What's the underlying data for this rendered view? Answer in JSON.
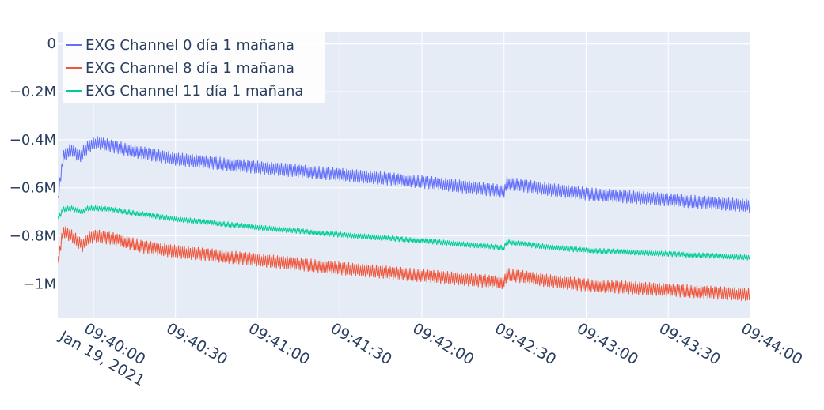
{
  "chart_data": {
    "type": "line",
    "title": "",
    "xlabel": "",
    "ylabel": "",
    "x_range": [
      "09:39:47",
      "09:44:00"
    ],
    "y_range": [
      -1140000,
      50000
    ],
    "grid": true,
    "legend_position": "top-left",
    "y_ticks": [
      {
        "value": 0,
        "label": "0"
      },
      {
        "value": -200000,
        "label": "−0.2M"
      },
      {
        "value": -400000,
        "label": "−0.4M"
      },
      {
        "value": -600000,
        "label": "−0.6M"
      },
      {
        "value": -800000,
        "label": "−0.8M"
      },
      {
        "value": -1000000,
        "label": "−1M"
      }
    ],
    "x_ticks": [
      {
        "t": "09:40:00",
        "label": "09:40:00",
        "sublabel": "Jan 19, 2021"
      },
      {
        "t": "09:40:30",
        "label": "09:40:30"
      },
      {
        "t": "09:41:00",
        "label": "09:41:00"
      },
      {
        "t": "09:41:30",
        "label": "09:41:30"
      },
      {
        "t": "09:42:00",
        "label": "09:42:00"
      },
      {
        "t": "09:42:30",
        "label": "09:42:30"
      },
      {
        "t": "09:43:00",
        "label": "09:43:00"
      },
      {
        "t": "09:43:30",
        "label": "09:43:30"
      },
      {
        "t": "09:44:00",
        "label": "09:44:00"
      }
    ],
    "series": [
      {
        "name": "EXG Channel 0 día 1 mañana",
        "color": "#636efa",
        "band": 28000,
        "points": [
          [
            "09:39:47",
            -650000
          ],
          [
            "09:39:49",
            -470000
          ],
          [
            "09:39:52",
            -440000
          ],
          [
            "09:39:55",
            -470000
          ],
          [
            "09:39:58",
            -430000
          ],
          [
            "09:40:01",
            -410000
          ],
          [
            "09:40:06",
            -425000
          ],
          [
            "09:40:12",
            -440000
          ],
          [
            "09:40:18",
            -455000
          ],
          [
            "09:40:30",
            -480000
          ],
          [
            "09:41:00",
            -515000
          ],
          [
            "09:41:30",
            -545000
          ],
          [
            "09:42:00",
            -575000
          ],
          [
            "09:42:30",
            -615000
          ],
          [
            "09:42:31",
            -580000
          ],
          [
            "09:42:45",
            -605000
          ],
          [
            "09:43:00",
            -625000
          ],
          [
            "09:43:30",
            -650000
          ],
          [
            "09:44:00",
            -675000
          ]
        ]
      },
      {
        "name": "EXG Channel 8 día 1 mañana",
        "color": "#ef553b",
        "band": 28000,
        "points": [
          [
            "09:39:47",
            -910000
          ],
          [
            "09:39:49",
            -780000
          ],
          [
            "09:39:52",
            -800000
          ],
          [
            "09:39:56",
            -840000
          ],
          [
            "09:39:58",
            -810000
          ],
          [
            "09:40:01",
            -800000
          ],
          [
            "09:40:06",
            -810000
          ],
          [
            "09:40:12",
            -825000
          ],
          [
            "09:40:18",
            -845000
          ],
          [
            "09:40:30",
            -865000
          ],
          [
            "09:41:00",
            -900000
          ],
          [
            "09:41:30",
            -935000
          ],
          [
            "09:42:00",
            -965000
          ],
          [
            "09:42:30",
            -995000
          ],
          [
            "09:42:31",
            -960000
          ],
          [
            "09:42:45",
            -985000
          ],
          [
            "09:43:00",
            -1005000
          ],
          [
            "09:43:30",
            -1025000
          ],
          [
            "09:44:00",
            -1045000
          ]
        ]
      },
      {
        "name": "EXG Channel 11 día 1 mañana",
        "color": "#00cc96",
        "band": 12000,
        "points": [
          [
            "09:39:47",
            -730000
          ],
          [
            "09:39:49",
            -690000
          ],
          [
            "09:39:52",
            -685000
          ],
          [
            "09:39:56",
            -700000
          ],
          [
            "09:39:58",
            -685000
          ],
          [
            "09:40:01",
            -685000
          ],
          [
            "09:40:06",
            -690000
          ],
          [
            "09:40:12",
            -700000
          ],
          [
            "09:40:18",
            -710000
          ],
          [
            "09:40:30",
            -730000
          ],
          [
            "09:41:00",
            -765000
          ],
          [
            "09:41:30",
            -795000
          ],
          [
            "09:42:00",
            -820000
          ],
          [
            "09:42:30",
            -850000
          ],
          [
            "09:42:31",
            -825000
          ],
          [
            "09:42:45",
            -845000
          ],
          [
            "09:43:00",
            -860000
          ],
          [
            "09:43:30",
            -875000
          ],
          [
            "09:44:00",
            -890000
          ]
        ]
      }
    ]
  }
}
